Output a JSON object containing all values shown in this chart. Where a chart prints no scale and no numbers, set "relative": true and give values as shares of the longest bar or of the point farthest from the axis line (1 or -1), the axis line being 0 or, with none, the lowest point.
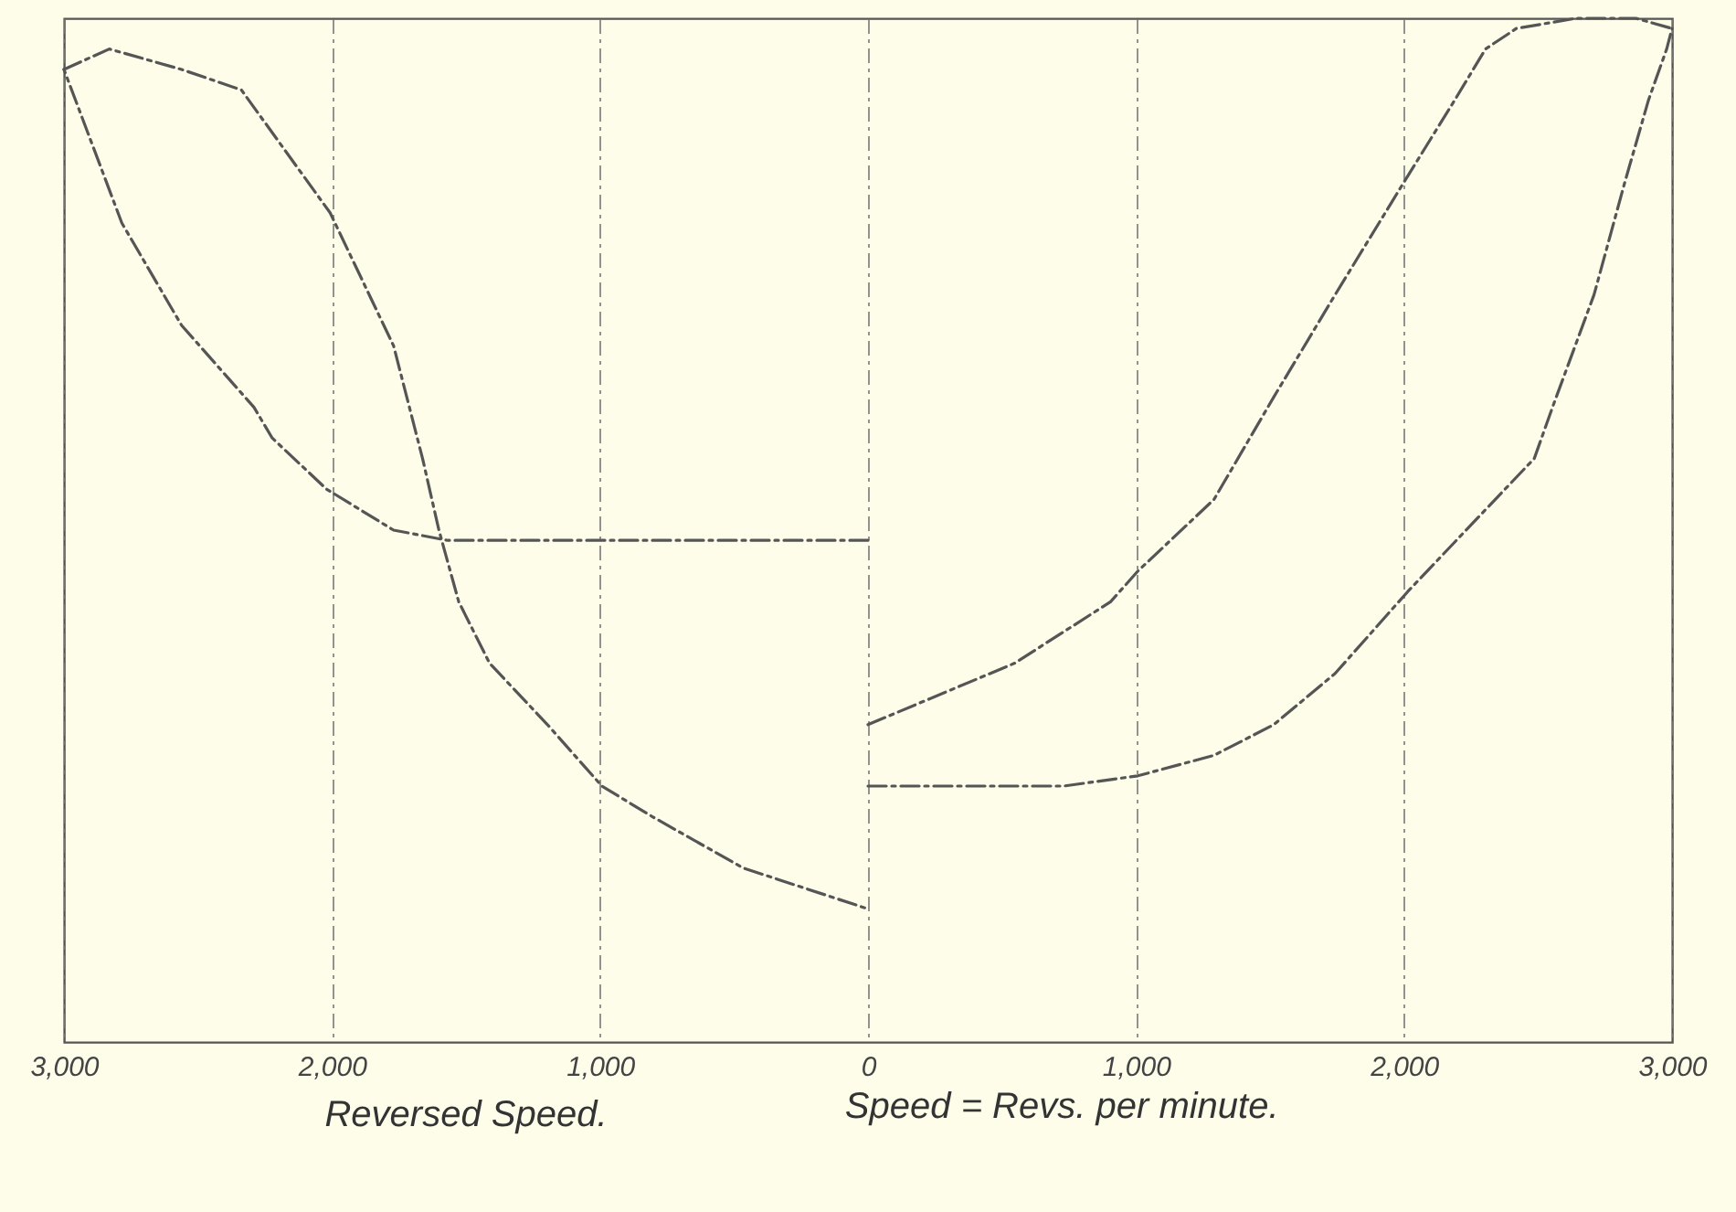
{
  "chart_data": {
    "type": "line",
    "relative": true,
    "xlabel": "Speed = Revs. per minute.",
    "annotations": [
      "Reversed Speed."
    ],
    "xlim": [
      -3000,
      3000
    ],
    "xticks": [
      {
        "value": -3000,
        "label": "3,000"
      },
      {
        "value": -2000,
        "label": "2,000"
      },
      {
        "value": -1000,
        "label": "1,000"
      },
      0,
      {
        "value": 1000,
        "label": "1,000"
      },
      {
        "value": 2000,
        "label": "2,000"
      },
      {
        "value": 3000,
        "label": "3,000"
      }
    ],
    "grid": "x",
    "line_style": "dashed",
    "series": [
      {
        "color": "#555555",
        "x": [
          -3000,
          -2831,
          -2561,
          -2338,
          -2007,
          -1770,
          -1662,
          -1601,
          -1527,
          -1412,
          -1196,
          -993,
          -804,
          -466,
          0
        ],
        "values": [
          0.95,
          0.97,
          0.95,
          0.93,
          0.81,
          0.68,
          0.57,
          0.5,
          0.43,
          0.37,
          0.31,
          0.25,
          0.22,
          0.17,
          0.13
        ]
      },
      {
        "color": "#555555",
        "x": [
          0,
          -419,
          -993,
          -1568,
          -1770,
          -2020,
          -2223,
          -2291,
          -2561,
          -2784,
          -3000
        ],
        "values": [
          0.49,
          0.49,
          0.49,
          0.49,
          0.5,
          0.54,
          0.59,
          0.62,
          0.7,
          0.8,
          0.95
        ]
      },
      {
        "color": "#555555",
        "x": [
          0,
          547,
          905,
          1007,
          1291,
          1514,
          1743,
          2000,
          2189,
          2304,
          2419,
          2642,
          2865,
          3000
        ],
        "values": [
          0.31,
          0.37,
          0.43,
          0.46,
          0.53,
          0.63,
          0.73,
          0.84,
          0.92,
          0.97,
          0.99,
          1,
          1,
          0.99
        ]
      },
      {
        "color": "#555555",
        "x": [
          0,
          730,
          1007,
          1291,
          1514,
          1743,
          2014,
          2304,
          2486,
          2554,
          2709,
          2824,
          2912,
          2980,
          3000
        ],
        "values": [
          0.25,
          0.25,
          0.26,
          0.28,
          0.31,
          0.36,
          0.44,
          0.52,
          0.57,
          0.62,
          0.73,
          0.84,
          0.92,
          0.97,
          0.99
        ]
      }
    ]
  }
}
